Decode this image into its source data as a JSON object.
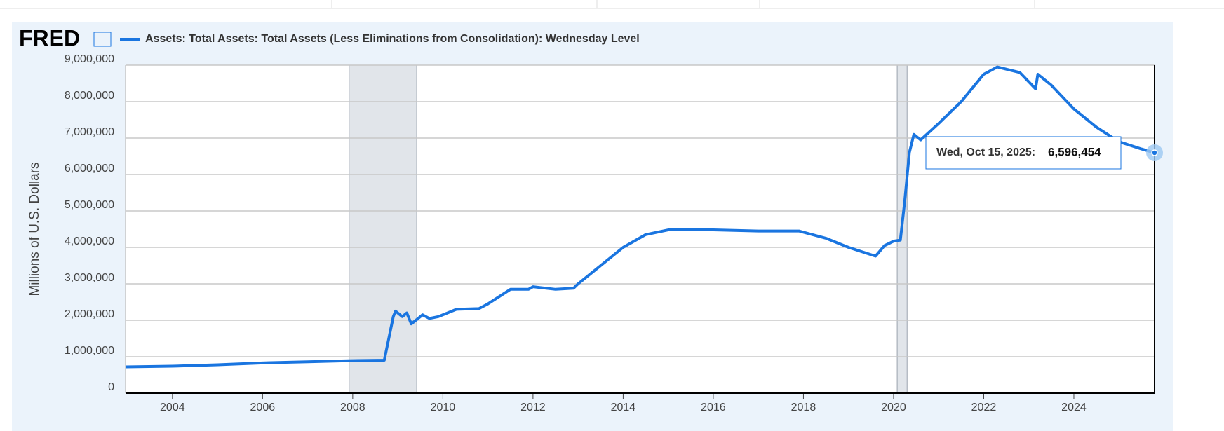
{
  "chart_data": {
    "type": "line",
    "logo": "FRED",
    "y_label": "Millions of U.S. Dollars",
    "xlim": [
      2002.96,
      2025.79
    ],
    "xticks": [
      2004,
      2006,
      2008,
      2010,
      2012,
      2014,
      2016,
      2018,
      2020,
      2022,
      2024
    ],
    "ylim": [
      0,
      9000000
    ],
    "yticks": [
      0,
      {
        "value": 1000000,
        "label": "1,000,000"
      },
      {
        "value": 2000000,
        "label": "2,000,000"
      },
      {
        "value": 3000000,
        "label": "3,000,000"
      },
      {
        "value": 4000000,
        "label": "4,000,000"
      },
      {
        "value": 5000000,
        "label": "5,000,000"
      },
      {
        "value": 6000000,
        "label": "6,000,000"
      },
      {
        "value": 7000000,
        "label": "7,000,000"
      },
      {
        "value": 8000000,
        "label": "8,000,000"
      },
      {
        "value": 9000000,
        "label": "9,000,000"
      }
    ],
    "grid": true,
    "shaded_periods": [
      [
        2007.92,
        2009.42
      ],
      [
        2020.08,
        2020.3
      ]
    ],
    "x": [
      2002.96,
      2004,
      2005,
      2006,
      2007,
      2007.9,
      2008.7,
      2008.8,
      2008.9,
      2008.95,
      2009.1,
      2009.2,
      2009.3,
      2009.45,
      2009.55,
      2009.7,
      2009.9,
      2010.3,
      2010.8,
      2011.0,
      2011.5,
      2011.9,
      2012.0,
      2012.5,
      2012.9,
      2013.0,
      2013.5,
      2014.0,
      2014.5,
      2015,
      2016,
      2017,
      2017.9,
      2018.5,
      2019.0,
      2019.6,
      2019.8,
      2020.0,
      2020.15,
      2020.25,
      2020.35,
      2020.45,
      2020.6,
      2021.0,
      2021.5,
      2022.0,
      2022.3,
      2022.8,
      2023.15,
      2023.2,
      2023.5,
      2024.0,
      2024.5,
      2025.0,
      2025.5,
      2025.79
    ],
    "series": [
      {
        "name": "Assets: Total Assets: Total Assets (Less Eliminations from Consolidation): Wednesday Level",
        "color": "#1a75e0",
        "values": [
          720000,
          740000,
          780000,
          830000,
          860000,
          890000,
          905000,
          1500000,
          2100000,
          2250000,
          2100000,
          2200000,
          1900000,
          2050000,
          2150000,
          2050000,
          2100000,
          2300000,
          2320000,
          2450000,
          2850000,
          2850000,
          2920000,
          2850000,
          2880000,
          3000000,
          3500000,
          4000000,
          4350000,
          4480000,
          4480000,
          4450000,
          4450000,
          4250000,
          4000000,
          3760000,
          4050000,
          4170000,
          4200000,
          5300000,
          6600000,
          7100000,
          6950000,
          7400000,
          8000000,
          8750000,
          8950000,
          8800000,
          8350000,
          8750000,
          8450000,
          7800000,
          7300000,
          6900000,
          6700000,
          6596454
        ]
      }
    ],
    "tooltip": {
      "label": "Wed, Oct 15, 2025:",
      "value": 6596454,
      "value_label": "6,596,454"
    }
  }
}
